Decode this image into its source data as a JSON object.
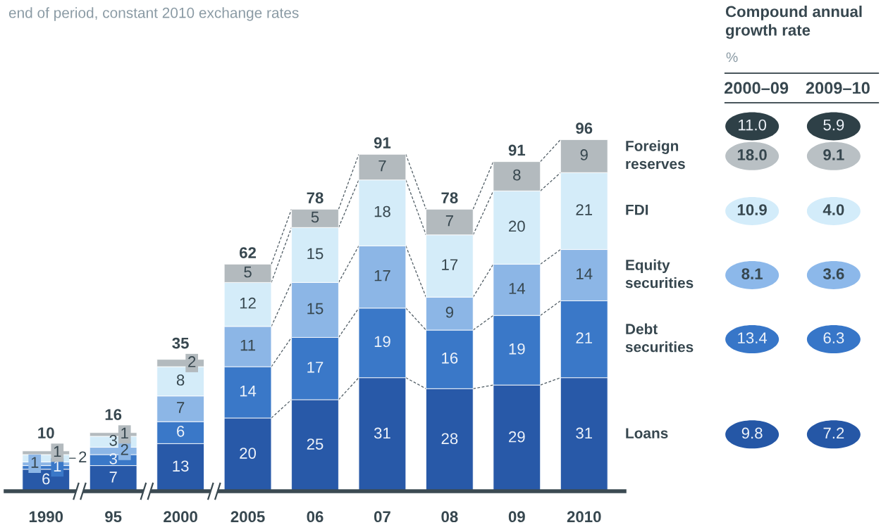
{
  "chart_data": [
    {
      "type": "bar",
      "subtitle": "end of period, constant 2010 exchange rates",
      "categories": [
        "1990",
        "95",
        "2000",
        "2005",
        "06",
        "07",
        "08",
        "09",
        "2010"
      ],
      "stacked": true,
      "tick_labels": "x",
      "data_labels": true,
      "legend": "right",
      "totals": [
        "10",
        "16",
        "35",
        "62",
        "78",
        "91",
        "78",
        "91",
        "96"
      ],
      "series": [
        {
          "name": "Loans",
          "color": "#2859a8",
          "values": [
            6,
            7,
            13,
            20,
            25,
            31,
            28,
            29,
            31
          ]
        },
        {
          "name": "Debt securities",
          "color": "#3a78c8",
          "values": [
            1,
            3,
            6,
            14,
            17,
            19,
            16,
            19,
            21
          ]
        },
        {
          "name": "Equity securities",
          "color": "#8cb6e6",
          "values": [
            1,
            2,
            7,
            11,
            15,
            17,
            9,
            14,
            14
          ]
        },
        {
          "name": "FDI",
          "color": "#d4ecf9",
          "values": [
            2,
            3,
            8,
            12,
            15,
            18,
            17,
            20,
            21
          ]
        },
        {
          "name": "Foreign reserves",
          "color": "#b3babe",
          "values": [
            1,
            1,
            2,
            5,
            5,
            7,
            7,
            8,
            9
          ]
        }
      ]
    },
    {
      "type": "other",
      "title": "Compound annual growth rate",
      "subtitle": "%",
      "categories": [
        "2000–09",
        "2009–10"
      ],
      "series": [
        {
          "color": "#2e4047",
          "values": [
            11.0,
            5.9
          ],
          "value_labels": [
            "11.0",
            "5.9"
          ]
        },
        {
          "color": "#b9c0c4",
          "values": [
            18.0,
            9.1
          ],
          "value_labels": [
            "18.0",
            "9.1"
          ]
        },
        {
          "color": "#d3ecfa",
          "values": [
            10.9,
            4.0
          ],
          "value_labels": [
            "10.9",
            "4.0"
          ]
        },
        {
          "color": "#8cb8ea",
          "values": [
            8.1,
            3.6
          ],
          "value_labels": [
            "8.1",
            "3.6"
          ]
        },
        {
          "color": "#3776c8",
          "values": [
            13.4,
            6.3
          ],
          "value_labels": [
            "13.4",
            "6.3"
          ]
        },
        {
          "color": "#2557a6",
          "values": [
            9.8,
            7.2
          ],
          "value_labels": [
            "9.8",
            "7.2"
          ]
        }
      ]
    }
  ]
}
